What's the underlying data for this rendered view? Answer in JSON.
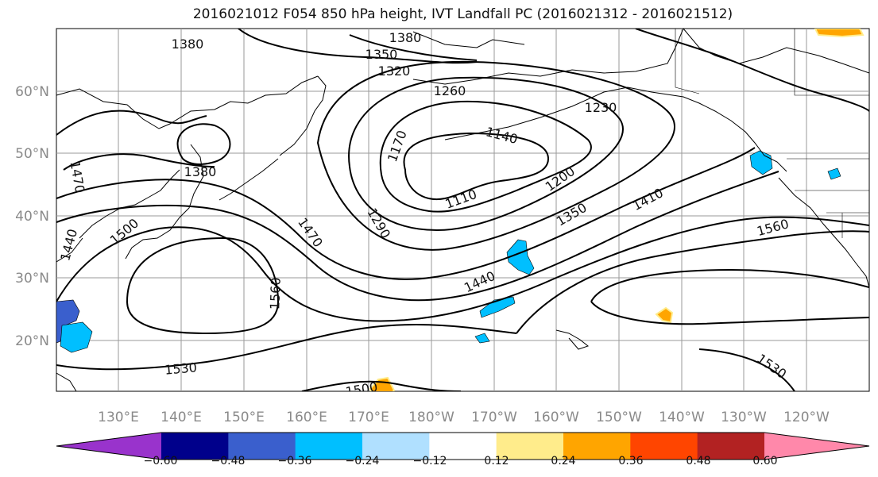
{
  "title": "2016021012 F054 850 hPa height, IVT Landfall PC (2016021312 - 2016021512)",
  "lat_labels": [
    "60°N",
    "50°N",
    "40°N",
    "30°N",
    "20°N"
  ],
  "lon_labels": [
    "130°E",
    "140°E",
    "150°E",
    "160°E",
    "170°E",
    "180°W",
    "170°W",
    "160°W",
    "150°W",
    "140°W",
    "130°W",
    "120°W"
  ],
  "contour_labels": [
    "1380",
    "1380",
    "1350",
    "1320",
    "1260",
    "1170",
    "1140",
    "1230",
    "1380",
    "1470",
    "1110",
    "1200",
    "1290",
    "1350",
    "1410",
    "1560",
    "1500",
    "1440",
    "1470",
    "1560",
    "1440",
    "1530",
    "1500",
    "1530"
  ],
  "colorbar": {
    "colors": [
      "#9933cc",
      "#00008b",
      "#3a5fcd",
      "#00bfff",
      "#b0e0ff",
      "#ffffff",
      "#ffec8b",
      "#ffa500",
      "#ff4500",
      "#b22222",
      "#ff88aa"
    ],
    "ticks": [
      "−0.60",
      "−0.48",
      "−0.36",
      "−0.24",
      "−0.12",
      "0.12",
      "0.24",
      "0.36",
      "0.48",
      "0.60"
    ]
  },
  "colors": {
    "contour": "#000000",
    "grid": "#9a9a9a",
    "coast": "#000000"
  }
}
